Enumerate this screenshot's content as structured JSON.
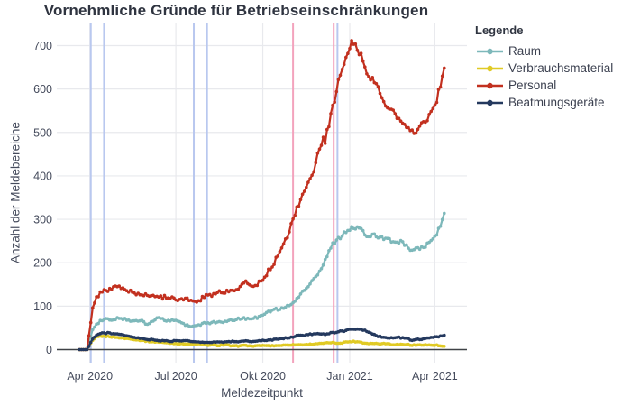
{
  "page": {
    "title": "Vornehmliche Gründe für Betriebseinschränkungen"
  },
  "chart_data": {
    "type": "line",
    "title": "Vornehmliche Gründe für Betriebseinschränkungen",
    "xlabel": "Meldezeitpunkt",
    "ylabel": "Anzahl der Meldebereiche",
    "legend_title": "Legende",
    "legend_position": "right",
    "grid": true,
    "x_tick_labels": [
      "Apr 2020",
      "Jul 2020",
      "Okt 2020",
      "Jan 2021",
      "Apr 2021"
    ],
    "x_tick_dates": [
      "2020-04-01",
      "2020-07-01",
      "2020-10-01",
      "2021-01-01",
      "2021-04-01"
    ],
    "x_range": [
      "2020-02-26",
      "2021-05-05"
    ],
    "y_ticks": [
      0,
      100,
      200,
      300,
      400,
      500,
      600,
      700
    ],
    "ylim": [
      0,
      750
    ],
    "colors": {
      "grid": "#e8e9ed",
      "axis_line": "#3f4246",
      "tick_text": "#454b5c",
      "title_text": "#2f3440",
      "event_blue": "#b9c8ef",
      "event_pink": "#f3a3bd"
    },
    "event_lines": [
      {
        "date": "2020-04-02",
        "color": "#b9c8ef"
      },
      {
        "date": "2020-04-16",
        "color": "#b9c8ef"
      },
      {
        "date": "2020-07-20",
        "color": "#b9c8ef"
      },
      {
        "date": "2020-08-03",
        "color": "#b9c8ef"
      },
      {
        "date": "2020-11-02",
        "color": "#f3a3bd"
      },
      {
        "date": "2020-12-15",
        "color": "#f3a3bd"
      },
      {
        "date": "2020-12-19",
        "color": "#b9c8ef"
      }
    ],
    "dates": [
      "2020-03-21",
      "2020-03-29",
      "2020-04-01",
      "2020-04-04",
      "2020-04-08",
      "2020-04-12",
      "2020-04-19",
      "2020-04-26",
      "2020-05-03",
      "2020-05-10",
      "2020-05-17",
      "2020-05-24",
      "2020-05-31",
      "2020-06-07",
      "2020-06-14",
      "2020-06-21",
      "2020-06-28",
      "2020-07-05",
      "2020-07-12",
      "2020-07-19",
      "2020-07-26",
      "2020-08-02",
      "2020-08-09",
      "2020-08-16",
      "2020-08-23",
      "2020-08-30",
      "2020-09-06",
      "2020-09-13",
      "2020-09-20",
      "2020-09-27",
      "2020-10-04",
      "2020-10-11",
      "2020-10-18",
      "2020-10-25",
      "2020-11-01",
      "2020-11-08",
      "2020-11-15",
      "2020-11-22",
      "2020-11-29",
      "2020-12-06",
      "2020-12-13",
      "2020-12-20",
      "2020-12-27",
      "2021-01-03",
      "2021-01-10",
      "2021-01-17",
      "2021-01-24",
      "2021-01-31",
      "2021-02-07",
      "2021-02-14",
      "2021-02-21",
      "2021-02-28",
      "2021-03-07",
      "2021-03-14",
      "2021-03-21",
      "2021-03-28",
      "2021-04-04",
      "2021-04-11"
    ],
    "series": [
      {
        "name": "Raum",
        "color": "#7db8ba",
        "values": [
          0,
          0,
          22,
          45,
          58,
          65,
          70,
          68,
          70,
          65,
          63,
          66,
          62,
          67,
          70,
          65,
          67,
          63,
          58,
          53,
          58,
          62,
          64,
          63,
          66,
          69,
          72,
          70,
          74,
          76,
          82,
          88,
          94,
          99,
          106,
          118,
          138,
          158,
          180,
          205,
          238,
          258,
          270,
          278,
          288,
          268,
          265,
          258,
          262,
          255,
          248,
          238,
          228,
          236,
          240,
          252,
          268,
          308
        ]
      },
      {
        "name": "Verbrauchsmaterial",
        "color": "#e0ca25",
        "values": [
          0,
          0,
          10,
          20,
          28,
          31,
          30,
          28,
          27,
          25,
          23,
          21,
          20,
          18,
          17,
          16,
          15,
          14,
          13,
          12,
          12,
          11,
          11,
          10,
          10,
          9,
          9,
          9,
          8,
          9,
          9,
          10,
          10,
          11,
          11,
          12,
          12,
          13,
          13,
          14,
          15,
          16,
          17,
          18,
          17,
          16,
          15,
          14,
          13,
          12,
          12,
          11,
          11,
          11,
          11,
          10,
          10,
          8
        ]
      },
      {
        "name": "Personal",
        "color": "#c2301f",
        "values": [
          0,
          0,
          45,
          95,
          120,
          130,
          140,
          148,
          142,
          137,
          132,
          130,
          127,
          125,
          122,
          120,
          122,
          119,
          116,
          114,
          117,
          120,
          128,
          135,
          132,
          138,
          146,
          154,
          150,
          155,
          168,
          188,
          215,
          255,
          300,
          335,
          372,
          408,
          448,
          490,
          555,
          625,
          668,
          705,
          680,
          652,
          625,
          598,
          575,
          548,
          532,
          518,
          505,
          508,
          525,
          545,
          580,
          640
        ]
      },
      {
        "name": "Beatmungsgeräte",
        "color": "#24395e",
        "values": [
          0,
          0,
          12,
          25,
          33,
          37,
          38,
          35,
          33,
          31,
          29,
          27,
          25,
          24,
          22,
          21,
          20,
          20,
          19,
          18,
          17,
          18,
          17,
          18,
          18,
          19,
          18,
          19,
          18,
          19,
          20,
          22,
          25,
          28,
          30,
          33,
          33,
          34,
          36,
          35,
          38,
          41,
          44,
          48,
          47,
          43,
          35,
          30,
          27,
          26,
          27,
          25,
          23,
          25,
          26,
          28,
          31,
          35
        ]
      }
    ]
  }
}
